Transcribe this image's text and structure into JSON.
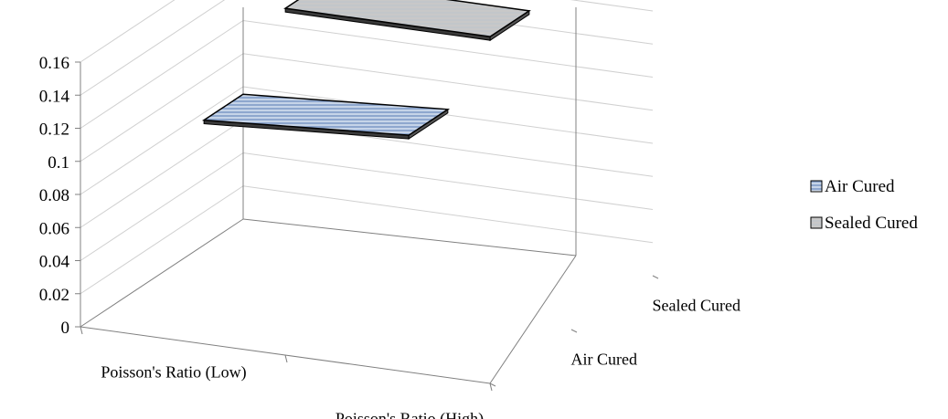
{
  "chart_data": {
    "type": "line",
    "title": "",
    "xlabel": "",
    "ylabel": "",
    "view": "3d",
    "categories": [
      "Poisson's Ratio (Low)",
      "Poisson's Ratio (High)"
    ],
    "depth_categories": [
      "Air Cured",
      "Sealed Cured"
    ],
    "series": [
      {
        "name": "Air Cured",
        "values": [
          0.125,
          0.133
        ],
        "color": "#9DB3D6"
      },
      {
        "name": "Sealed Cured",
        "values": [
          0.16,
          0.16
        ],
        "color": "#C8C8C8"
      }
    ],
    "ylim": [
      0,
      0.16
    ],
    "yticks": [
      "0",
      "0.02",
      "0.04",
      "0.06",
      "0.08",
      "0.1",
      "0.12",
      "0.14",
      "0.16"
    ],
    "grid": true,
    "legend": "right"
  }
}
